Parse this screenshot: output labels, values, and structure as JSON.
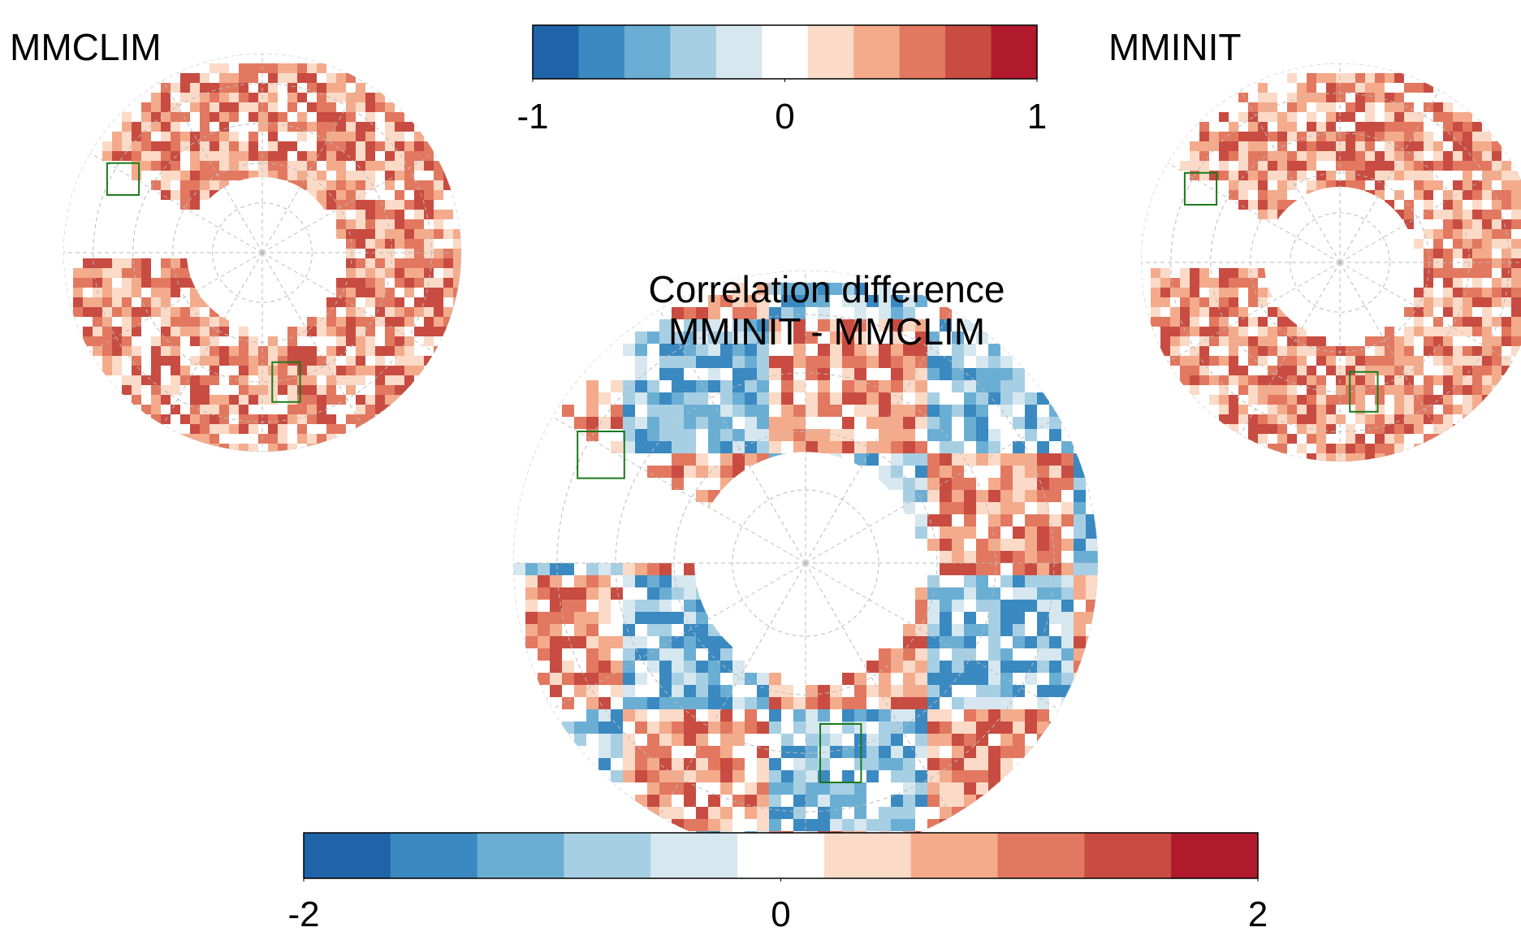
{
  "panels": {
    "left_title": "MMCLIM",
    "right_title": "MMINIT",
    "center_title": "Correlation difference",
    "center_subtitle": "MMINIT - MMCLIM"
  },
  "colorbars": [
    {
      "lim": [
        -1,
        1
      ],
      "ticks": [
        -1,
        0,
        1
      ],
      "colors": [
        "#1f63a8",
        "#3a89c1",
        "#6aaed4",
        "#a7cfe4",
        "#d6e7f0",
        "#ffffff",
        "#fbdac7",
        "#f4ab8b",
        "#e2785f",
        "#c84c41",
        "#b11a2c"
      ]
    },
    {
      "lim": [
        -2,
        2
      ],
      "ticks": [
        -2,
        0,
        2
      ],
      "colors": [
        "#1f63a8",
        "#3a89c1",
        "#6aaed4",
        "#a7cfe4",
        "#d6e7f0",
        "#ffffff",
        "#fbdac7",
        "#f4ab8b",
        "#e2785f",
        "#c84c41",
        "#b11a2c"
      ]
    }
  ]
}
